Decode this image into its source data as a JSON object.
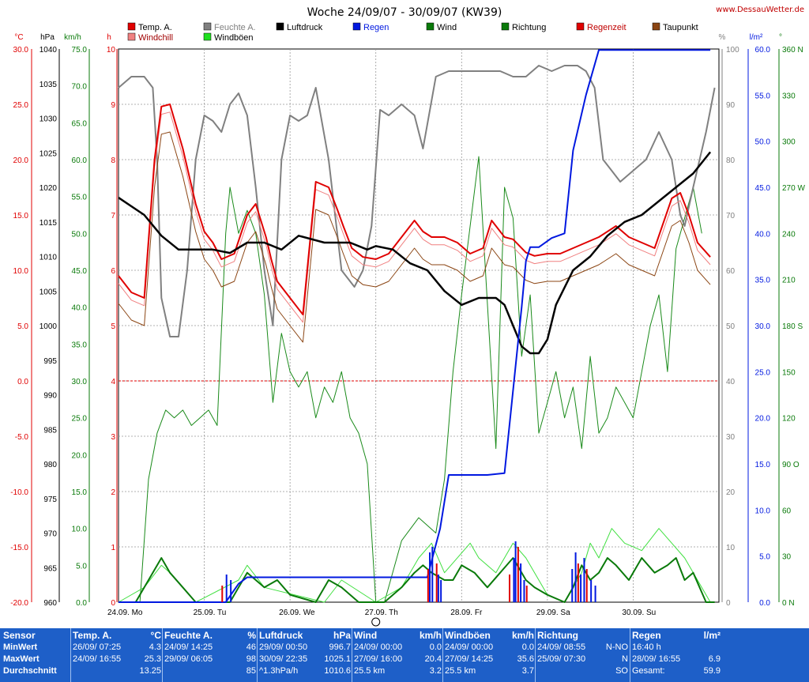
{
  "title": "Woche 24/09/07 - 30/09/07 (KW39)",
  "website": "www.DessauWetter.de",
  "legend": [
    {
      "label": "Temp. A.",
      "color": "#e00000"
    },
    {
      "label": "Feuchte A.",
      "color": "#808080"
    },
    {
      "label": "Luftdruck",
      "color": "#000000"
    },
    {
      "label": "Regen",
      "color": "#0018e0"
    },
    {
      "label": "Wind",
      "color": "#0a7a0a"
    },
    {
      "label": "Richtung",
      "color": "#0a7a0a"
    },
    {
      "label": "Regenzeit",
      "color": "#e00000"
    },
    {
      "label": "Taupunkt",
      "color": "#8b4513"
    },
    {
      "label": "Windchill",
      "color": "#f08080"
    },
    {
      "label": "Windböen",
      "color": "#20e020"
    }
  ],
  "axes": {
    "temp_unit": "°C",
    "temp_ticks": [
      "30.0",
      "25.0",
      "20.0",
      "15.0",
      "10.0",
      "5.0",
      "0.0",
      "-5.0",
      "-10.0",
      "-15.0",
      "-20.0"
    ],
    "press_unit": "hPa",
    "press_ticks": [
      "1040",
      "1035",
      "1030",
      "1025",
      "1020",
      "1015",
      "1010",
      "1005",
      "1000",
      "995",
      "990",
      "985",
      "980",
      "975",
      "970",
      "965",
      "960"
    ],
    "wind_unit": "km/h",
    "wind_ticks": [
      "75.0",
      "70.0",
      "65.0",
      "60.0",
      "55.0",
      "50.0",
      "45.0",
      "40.0",
      "35.0",
      "30.0",
      "25.0",
      "20.0",
      "15.0",
      "10.0",
      "5.0",
      "0.0"
    ],
    "h_unit": "h",
    "h_ticks": [
      "10",
      "9",
      "8",
      "7",
      "6",
      "5",
      "4",
      "3",
      "2",
      "1",
      "0"
    ],
    "hum_unit": "%",
    "hum_ticks": [
      "100",
      "90",
      "80",
      "70",
      "60",
      "50",
      "40",
      "30",
      "20",
      "10",
      "0"
    ],
    "rain_unit": "l/m²",
    "rain_ticks": [
      "60.0",
      "55.0",
      "50.0",
      "45.0",
      "40.0",
      "35.0",
      "30.0",
      "25.0",
      "20.0",
      "15.0",
      "10.0",
      "5.0",
      "0.0"
    ],
    "dir_unit": "°",
    "dir_ticks": [
      "360 N",
      "330",
      "300",
      "270 W",
      "240",
      "210",
      "180 S",
      "150",
      "120",
      "90 O",
      "60",
      "30",
      "0 N"
    ],
    "days": [
      "24.09. Mo",
      "25.09. Tu",
      "26.09. We",
      "27.09. Th",
      "28.09. Fr",
      "29.09. Sa",
      "30.09. Su"
    ]
  },
  "chart_data": {
    "type": "line",
    "x_unit": "day index (0 = 24.09.07 00:00)",
    "series": [
      {
        "name": "Temp. A.",
        "unit": "°C",
        "x": [
          0,
          0.15,
          0.3,
          0.42,
          0.5,
          0.6,
          0.75,
          0.9,
          1.0,
          1.1,
          1.2,
          1.35,
          1.5,
          1.6,
          1.72,
          1.78,
          1.85,
          2.0,
          2.15,
          2.3,
          2.45,
          2.55,
          2.62,
          2.72,
          2.85,
          3.0,
          3.15,
          3.3,
          3.45,
          3.55,
          3.65,
          3.8,
          3.95,
          4.1,
          4.25,
          4.35,
          4.5,
          4.6,
          4.75,
          4.85,
          5.0,
          5.15,
          5.3,
          5.45,
          5.6,
          5.8,
          5.95,
          6.1,
          6.25,
          6.45,
          6.55,
          6.65,
          6.75,
          6.9
        ],
        "values": [
          9.5,
          8.0,
          7.5,
          20.0,
          24.8,
          25.0,
          21.0,
          16.0,
          13.5,
          12.5,
          11.0,
          11.5,
          15.0,
          16.0,
          13.0,
          11.0,
          9.0,
          7.5,
          6.0,
          18.0,
          17.5,
          15.5,
          14.0,
          12.0,
          11.2,
          11.0,
          11.5,
          13.0,
          14.5,
          13.5,
          13.0,
          13.0,
          12.5,
          11.5,
          12.0,
          14.5,
          13.0,
          12.8,
          11.6,
          11.3,
          11.5,
          11.5,
          12.0,
          12.5,
          13.0,
          14.0,
          13.0,
          12.5,
          12.0,
          16.5,
          17.0,
          15.0,
          12.5,
          11.2
        ]
      },
      {
        "name": "Feuchte A.",
        "unit": "%",
        "x": [
          0,
          0.15,
          0.3,
          0.4,
          0.45,
          0.5,
          0.6,
          0.7,
          0.8,
          0.9,
          1.0,
          1.1,
          1.2,
          1.3,
          1.4,
          1.5,
          1.6,
          1.7,
          1.8,
          1.9,
          2.0,
          2.1,
          2.2,
          2.3,
          2.45,
          2.6,
          2.75,
          2.85,
          2.95,
          3.05,
          3.15,
          3.3,
          3.45,
          3.55,
          3.7,
          3.85,
          4.0,
          4.15,
          4.3,
          4.45,
          4.6,
          4.75,
          4.9,
          5.05,
          5.2,
          5.35,
          5.45,
          5.55,
          5.65,
          5.75,
          5.85,
          6.0,
          6.15,
          6.3,
          6.45,
          6.55,
          6.6,
          6.7,
          6.85,
          6.95
        ],
        "values": [
          93,
          95,
          95,
          93,
          80,
          55,
          48,
          48,
          60,
          80,
          88,
          87,
          85,
          90,
          92,
          88,
          75,
          60,
          50,
          80,
          88,
          87,
          88,
          93,
          80,
          60,
          57,
          60,
          68,
          89,
          88,
          90,
          88,
          82,
          95,
          96,
          96,
          96,
          96,
          96,
          95,
          95,
          97,
          96,
          97,
          97,
          96,
          93,
          80,
          78,
          76,
          78,
          80,
          85,
          80,
          70,
          68,
          75,
          85,
          93
        ]
      },
      {
        "name": "Luftdruck",
        "unit": "hPa",
        "x": [
          0,
          0.3,
          0.5,
          0.7,
          0.9,
          1.1,
          1.3,
          1.5,
          1.7,
          1.9,
          2.1,
          2.4,
          2.7,
          2.9,
          3.0,
          3.2,
          3.4,
          3.6,
          3.8,
          4.0,
          4.2,
          4.4,
          4.5,
          4.6,
          4.7,
          4.8,
          4.9,
          5.0,
          5.1,
          5.3,
          5.5,
          5.7,
          5.9,
          6.1,
          6.3,
          6.5,
          6.7,
          6.9
        ],
        "values": [
          1018.5,
          1016,
          1013,
          1011,
          1011,
          1011,
          1010.5,
          1012,
          1012,
          1011,
          1013,
          1012,
          1012,
          1011,
          1011.5,
          1011,
          1009,
          1008,
          1005,
          1003,
          1004,
          1004,
          1003,
          1000,
          997,
          996,
          996,
          998,
          1003,
          1008,
          1010,
          1013,
          1015,
          1016,
          1018,
          1020,
          1022,
          1025.1
        ]
      },
      {
        "name": "Regen",
        "unit": "l/m²",
        "x": [
          0,
          1.25,
          1.4,
          1.5,
          3.0,
          3.6,
          3.75,
          3.85,
          4.0,
          4.3,
          4.5,
          4.7,
          4.75,
          4.8,
          4.9,
          5.05,
          5.2,
          5.3,
          5.45,
          5.6,
          5.65,
          6.9
        ],
        "values": [
          0,
          0,
          2,
          2.7,
          2.7,
          2.7,
          8,
          13.8,
          13.8,
          13.8,
          14,
          32,
          37,
          38.5,
          38.5,
          39.5,
          40,
          49,
          55,
          59.9,
          59.9,
          59.9
        ]
      },
      {
        "name": "Wind",
        "unit": "km/h",
        "x": [
          0,
          0.2,
          0.3,
          0.4,
          0.5,
          0.6,
          0.75,
          0.9,
          1.1,
          1.2,
          1.3,
          1.4,
          1.5,
          1.7,
          1.85,
          2.0,
          2.3,
          2.45,
          2.6,
          2.8,
          3.0,
          3.1,
          3.3,
          3.45,
          3.55,
          3.65,
          3.8,
          3.9,
          4.0,
          4.15,
          4.3,
          4.45,
          4.6,
          4.75,
          4.85,
          5.0,
          5.2,
          5.3,
          5.4,
          5.5,
          5.6,
          5.7,
          5.8,
          5.95,
          6.1,
          6.25,
          6.4,
          6.5,
          6.6,
          6.7,
          6.85,
          6.95
        ],
        "values": [
          0,
          0,
          2,
          4,
          6,
          4,
          2,
          0,
          0,
          0,
          0,
          2,
          4,
          2,
          3,
          1,
          0,
          3,
          2,
          0,
          0,
          0,
          2,
          4,
          5,
          4,
          3,
          3,
          5,
          4,
          2,
          4,
          6,
          3,
          2,
          1,
          0,
          2,
          5,
          3,
          4,
          6,
          5,
          3,
          6,
          4,
          5,
          6,
          3,
          4,
          0,
          0
        ]
      },
      {
        "name": "Windböen",
        "unit": "km/h",
        "x": [
          0,
          0.3,
          0.5,
          0.6,
          0.9,
          1.4,
          1.5,
          1.7,
          2.4,
          2.6,
          3.0,
          3.3,
          3.5,
          3.65,
          3.8,
          4.1,
          4.2,
          4.4,
          4.6,
          4.75,
          4.9,
          5.0,
          5.2,
          5.4,
          5.5,
          5.6,
          5.75,
          5.9,
          6.1,
          6.3,
          6.45,
          6.6,
          6.9
        ],
        "values": [
          0,
          2,
          5,
          4,
          0,
          3,
          5,
          2,
          0,
          3,
          0,
          2,
          6,
          8,
          4,
          8,
          6,
          4,
          8,
          6,
          3,
          1,
          0,
          4,
          8,
          6,
          10,
          8,
          7,
          10,
          8,
          6,
          0
        ]
      },
      {
        "name": "Richtung",
        "unit": "°",
        "x": [
          0,
          0.25,
          0.35,
          0.45,
          0.55,
          0.65,
          0.75,
          0.85,
          0.95,
          1.05,
          1.15,
          1.25,
          1.3,
          1.4,
          1.5,
          1.6,
          1.7,
          1.8,
          1.9,
          2.0,
          2.1,
          2.2,
          2.3,
          2.4,
          2.5,
          2.6,
          2.7,
          2.8,
          2.9,
          3.0,
          3.1,
          3.3,
          3.5,
          3.7,
          3.8,
          3.9,
          4.0,
          4.2,
          4.4,
          4.5,
          4.6,
          4.7,
          4.8,
          4.9,
          5.0,
          5.1,
          5.2,
          5.3,
          5.4,
          5.5,
          5.6,
          5.7,
          5.8,
          5.9,
          6.0,
          6.1,
          6.2,
          6.3,
          6.4,
          6.5,
          6.6,
          6.7,
          6.8
        ],
        "values": [
          0,
          0,
          80,
          110,
          125,
          120,
          125,
          115,
          120,
          125,
          115,
          240,
          270,
          240,
          255,
          240,
          200,
          130,
          175,
          150,
          140,
          150,
          120,
          140,
          130,
          150,
          120,
          110,
          90,
          0,
          0,
          40,
          55,
          45,
          80,
          150,
          200,
          290,
          100,
          270,
          250,
          160,
          200,
          110,
          130,
          150,
          120,
          140,
          100,
          160,
          110,
          120,
          140,
          130,
          120,
          150,
          180,
          200,
          150,
          230,
          250,
          270,
          240
        ]
      }
    ],
    "precip_time_bars": "Regenzeit (hourly rain duration bars shown in red/blue at bottom)"
  },
  "table": {
    "columns": [
      {
        "title": "Sensor",
        "unit": "",
        "rows": [
          "MinWert",
          "MaxWert",
          "Durchschnitt"
        ],
        "vals": [
          "",
          "",
          ""
        ]
      },
      {
        "title": "Temp. A.",
        "unit": "°C",
        "rows": [
          "26/09/  07:25",
          "24/09/  16:55",
          ""
        ],
        "vals": [
          "4.3",
          "25.3",
          "13.25"
        ]
      },
      {
        "title": "Feuchte A.",
        "unit": "%",
        "rows": [
          "24/09/  14:25",
          "29/09/  06:05",
          ""
        ],
        "vals": [
          "46",
          "98",
          "85"
        ]
      },
      {
        "title": "Luftdruck",
        "unit": "hPa",
        "rows": [
          "29/09/  00:50",
          "30/09/  22:35",
          "^1.3hPa/h"
        ],
        "vals": [
          "996.7",
          "1025.1",
          "1010.6"
        ]
      },
      {
        "title": "Wind",
        "unit": "km/h",
        "rows": [
          "24/09/  00:00",
          "27/09/  16:00",
          "25.5 km"
        ],
        "vals": [
          "0.0",
          "20.4",
          "3.2"
        ]
      },
      {
        "title": "Windböen",
        "unit": "km/h",
        "rows": [
          "24/09/  00:00",
          "27/09/  14:25",
          "25.5 km"
        ],
        "vals": [
          "0.0",
          "35.6",
          "3.7"
        ]
      },
      {
        "title": "Richtung",
        "unit": "",
        "rows": [
          "24/09/  08:55",
          "25/09/  07:30",
          ""
        ],
        "vals": [
          "N-NO",
          "N",
          "SO"
        ]
      },
      {
        "title": "Regen",
        "unit": "l/m²",
        "rows": [
          "16:40 h",
          "28/09/  16:55",
          "Gesamt:"
        ],
        "vals": [
          "",
          "6.9",
          "59.9"
        ]
      }
    ]
  }
}
